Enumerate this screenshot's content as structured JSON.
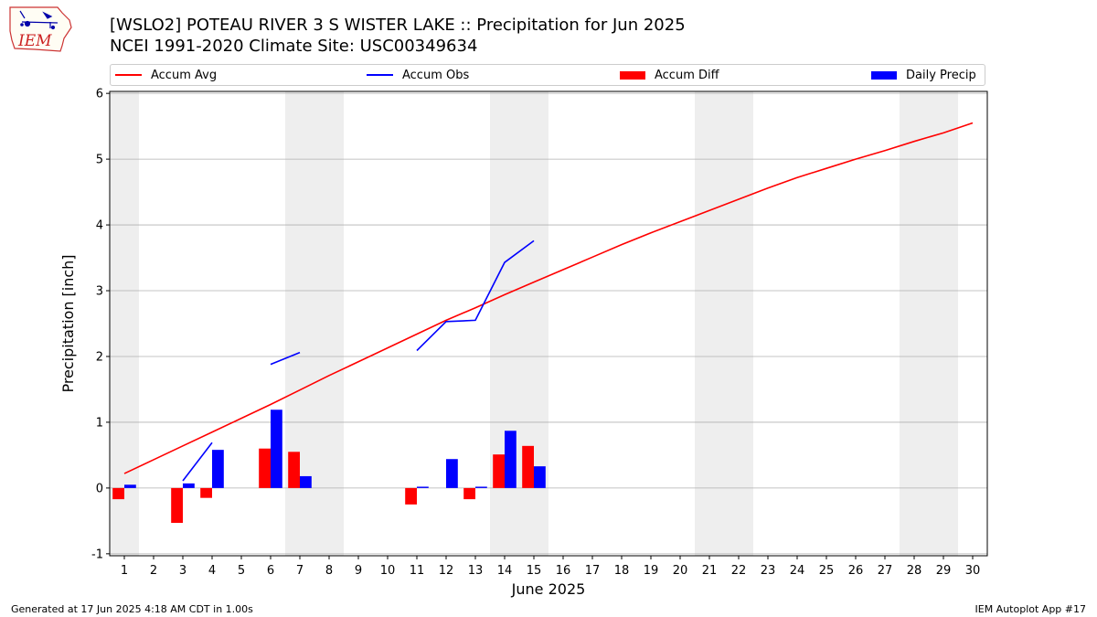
{
  "header": {
    "title_line1": "[WSLO2] POTEAU RIVER 3 S WISTER LAKE :: Precipitation for Jun 2025",
    "title_line2": "NCEI 1991-2020 Climate Site: USC00349634",
    "logo_text": "IEM"
  },
  "footer": {
    "generated": "Generated at 17 Jun 2025 4:18 AM CDT in 1.00s",
    "app": "IEM Autoplot App #17"
  },
  "chart_data": {
    "type": "bar",
    "xlabel": "June 2025",
    "ylabel": "Precipitation [inch]",
    "ylim": [
      -1.03,
      6.03
    ],
    "xlim": [
      0.5,
      30.5
    ],
    "y_ticks": [
      -1,
      0,
      1,
      2,
      3,
      4,
      5,
      6
    ],
    "x_ticks": [
      1,
      2,
      3,
      4,
      5,
      6,
      7,
      8,
      9,
      10,
      11,
      12,
      13,
      14,
      15,
      16,
      17,
      18,
      19,
      20,
      21,
      22,
      23,
      24,
      25,
      26,
      27,
      28,
      29,
      30
    ],
    "grid": "horizontal",
    "legend_position": "top",
    "weekend_shading": [
      [
        0.5,
        1.5
      ],
      [
        6.5,
        8.5
      ],
      [
        13.5,
        15.5
      ],
      [
        20.5,
        22.5
      ],
      [
        27.5,
        29.5
      ]
    ],
    "colors": {
      "accum_avg": "#ff0000",
      "accum_obs": "#0000ff",
      "accum_diff": "#ff0000",
      "daily_precip": "#0000ff",
      "weekend": "#eeeeee",
      "grid": "#b0b0b0"
    },
    "series": [
      {
        "name": "Accum Avg",
        "kind": "line",
        "x": [
          1,
          2,
          3,
          4,
          5,
          6,
          7,
          8,
          9,
          10,
          11,
          12,
          13,
          14,
          15,
          16,
          17,
          18,
          19,
          20,
          21,
          22,
          23,
          24,
          25,
          26,
          27,
          28,
          29,
          30
        ],
        "values": [
          0.22,
          0.43,
          0.64,
          0.85,
          1.06,
          1.27,
          1.49,
          1.71,
          1.92,
          2.13,
          2.34,
          2.55,
          2.74,
          2.94,
          3.13,
          3.32,
          3.51,
          3.7,
          3.88,
          4.05,
          4.22,
          4.39,
          4.56,
          4.72,
          4.86,
          5.0,
          5.13,
          5.27,
          5.4,
          5.55
        ]
      },
      {
        "name": "Accum Obs",
        "kind": "line",
        "x": [
          1,
          2,
          3,
          4,
          5,
          6,
          7,
          8,
          9,
          10,
          11,
          12,
          13,
          14,
          15
        ],
        "values": [
          null,
          null,
          0.11,
          0.69,
          null,
          1.88,
          2.06,
          null,
          null,
          null,
          2.09,
          2.53,
          2.55,
          3.43,
          3.76
        ]
      },
      {
        "name": "Accum Diff",
        "kind": "bar",
        "x": [
          1,
          3,
          4,
          6,
          7,
          11,
          13,
          14,
          15
        ],
        "values": [
          -0.17,
          -0.53,
          -0.15,
          0.6,
          0.55,
          -0.25,
          -0.17,
          0.51,
          0.64
        ]
      },
      {
        "name": "Daily Precip",
        "kind": "bar",
        "x": [
          1,
          3,
          4,
          6,
          7,
          11,
          12,
          13,
          14,
          15
        ],
        "values": [
          0.05,
          0.07,
          0.58,
          1.19,
          0.18,
          0.02,
          0.44,
          0.02,
          0.87,
          0.33
        ]
      }
    ]
  }
}
